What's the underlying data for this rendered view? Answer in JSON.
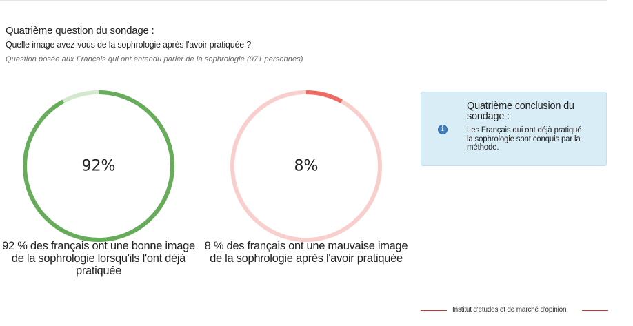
{
  "header": {
    "heading": "Quatrième question du sondage :",
    "question": "Quelle image avez-vous de la sophrologie après l'avoir pratiquée ?",
    "note": "Question posée aux Français qui ont entendu parler de la sophrologie (971 personnes)"
  },
  "chart_data": [
    {
      "type": "pie",
      "values": [
        92,
        8
      ],
      "center_label": "92%",
      "caption": "92 % des français ont une bonne image de la sophrologie lorsqu'ils l'ont déjà pratiquée",
      "colors": {
        "fill": "#66ac5b",
        "track": "#d3e8cf"
      }
    },
    {
      "type": "pie",
      "values": [
        8,
        92
      ],
      "center_label": "8%",
      "caption": "8 % des français ont une mauvaise image de la sophrologie après l'avoir pratiquée",
      "colors": {
        "fill": "#ee6b63",
        "track": "#f9cfcd"
      }
    }
  ],
  "conclusion": {
    "title": "Quatrième conclusion du sondage :",
    "text": "Les Français qui ont déjà pratiqué la sophrologie sont conquis par la méthode.",
    "icon": "info-icon"
  },
  "footer": {
    "text": "Institut d'etudes et de marché d'opinion"
  }
}
